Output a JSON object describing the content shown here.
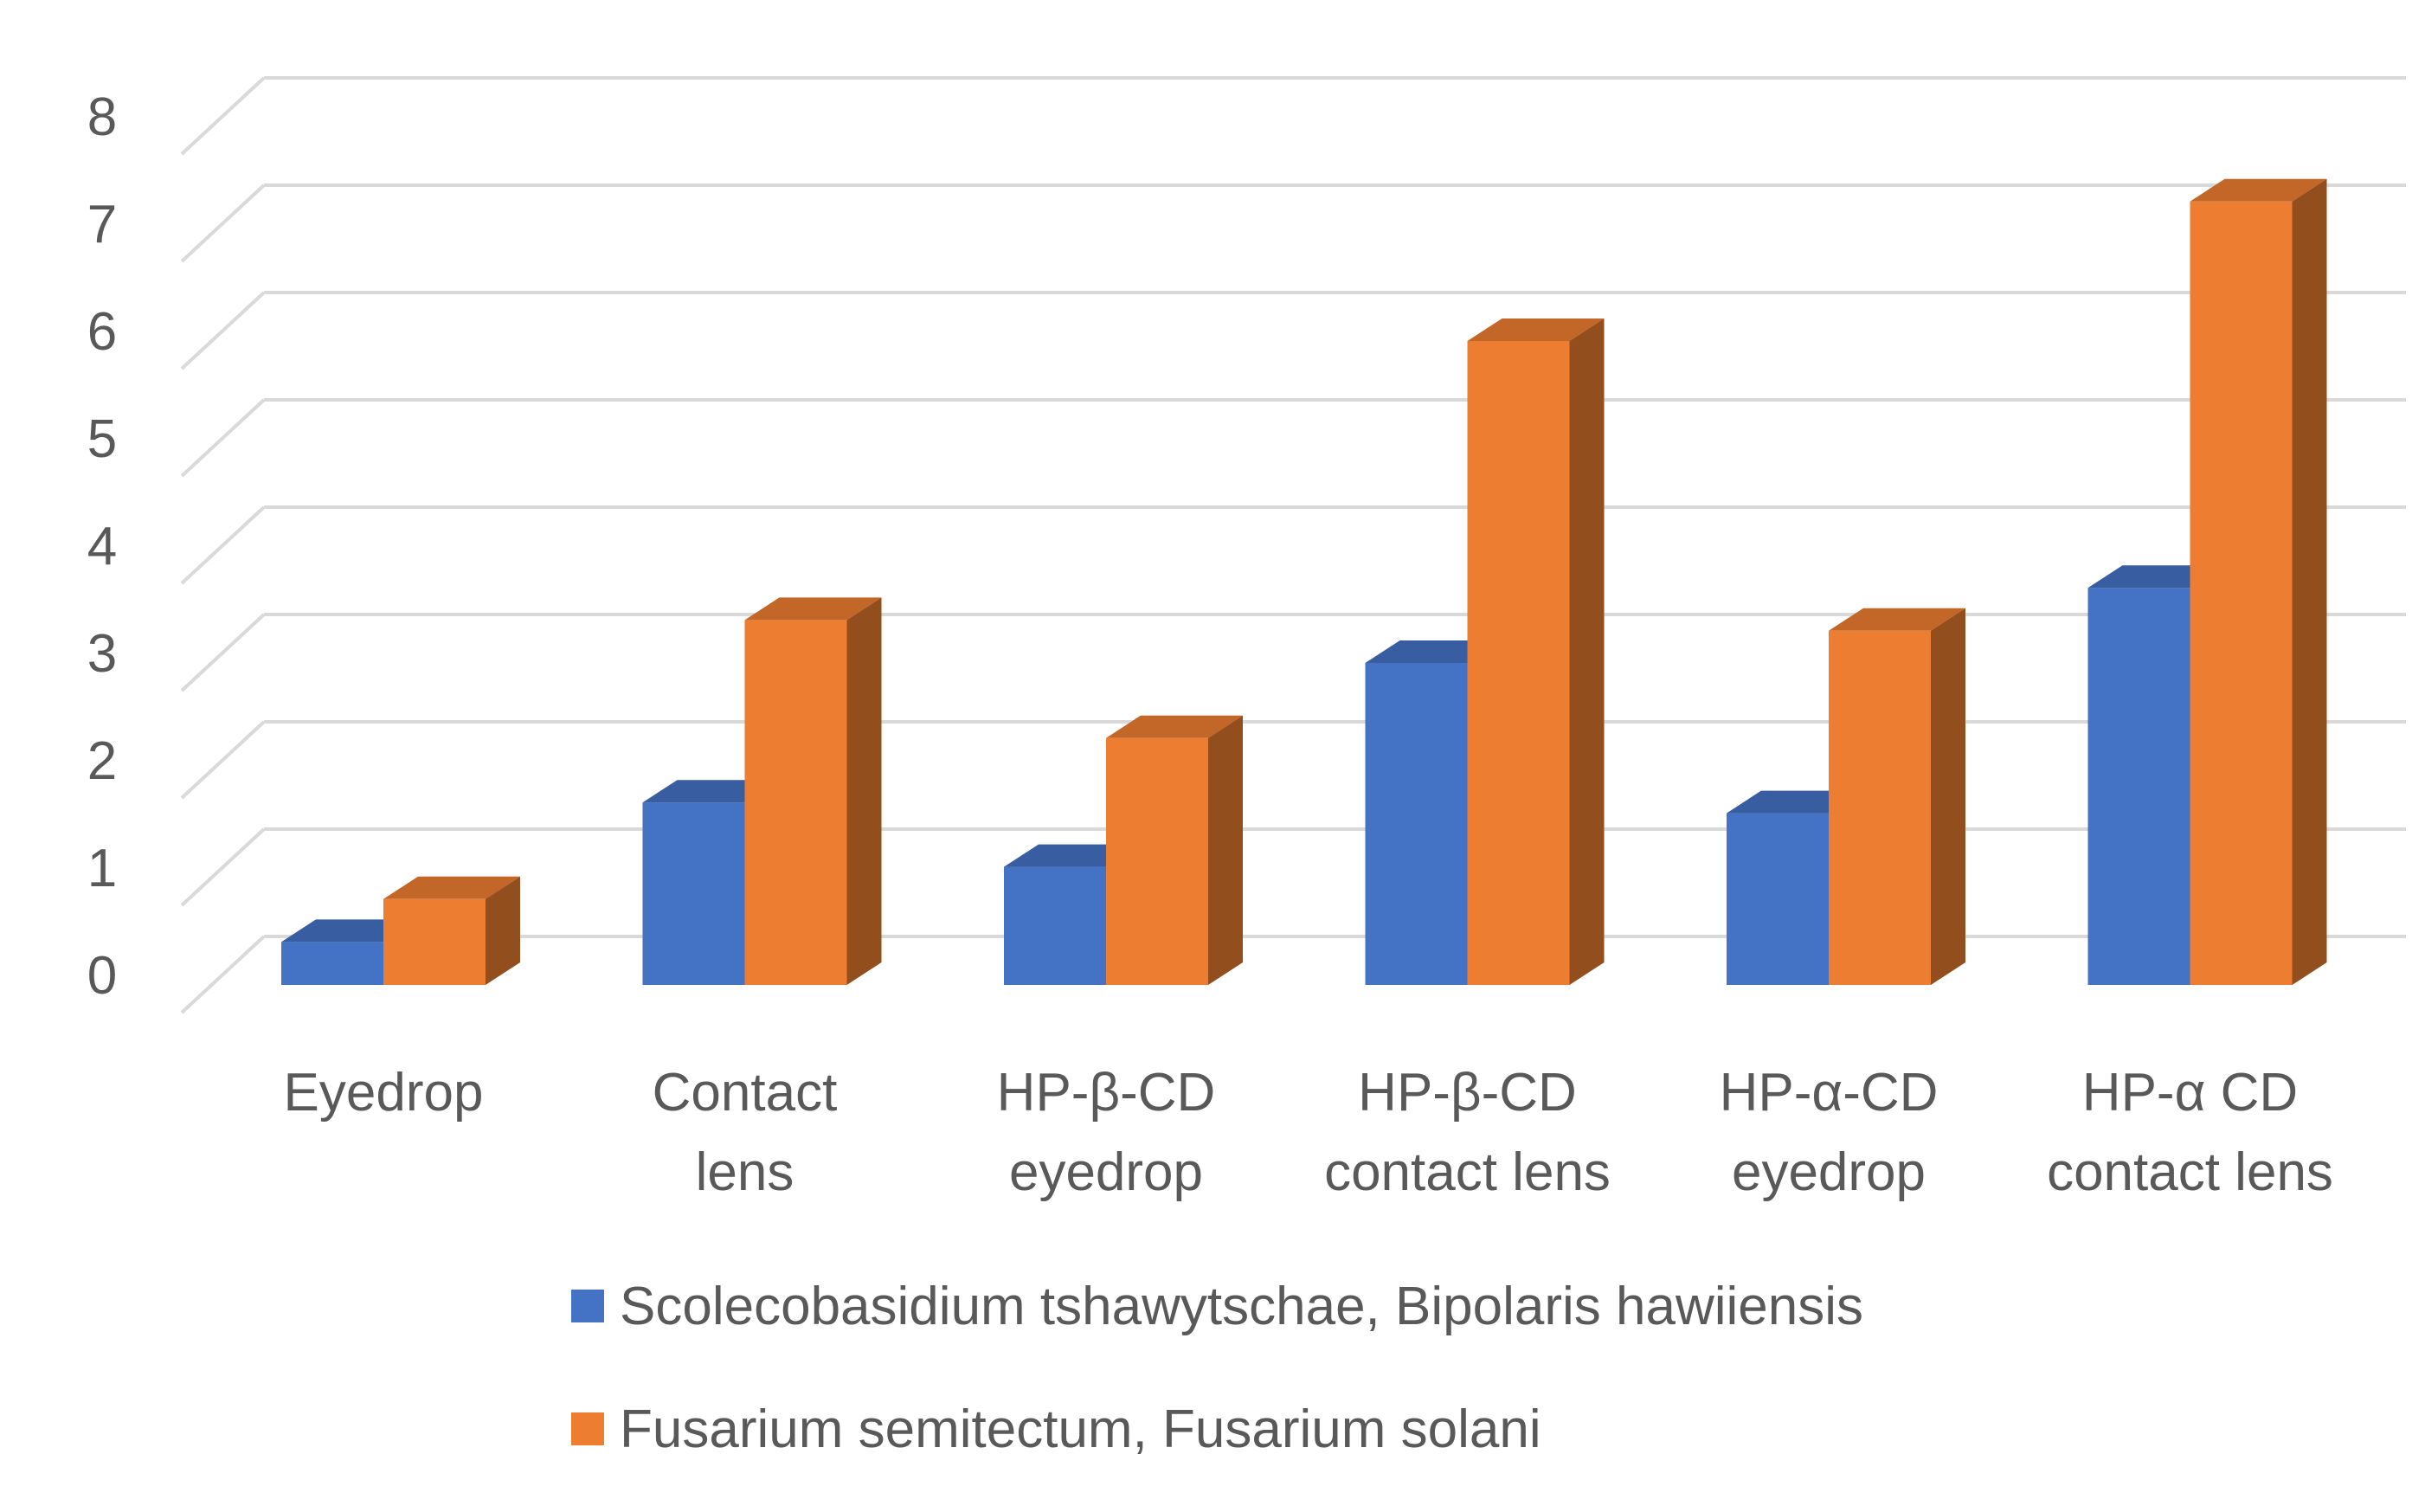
{
  "chart_data": {
    "type": "bar",
    "style": "3d-clustered-column",
    "title": "",
    "xlabel": "",
    "ylabel": "",
    "ylim": [
      0,
      8
    ],
    "yticks": [
      0,
      1,
      2,
      3,
      4,
      5,
      6,
      7,
      8
    ],
    "grid": true,
    "legend": "bottom",
    "categories": [
      [
        "Eyedrop"
      ],
      [
        "Contact",
        "lens"
      ],
      [
        "HP-β-CD",
        "eyedrop"
      ],
      [
        "HP-β-CD",
        "contact lens"
      ],
      [
        "HP-α-CD",
        "eyedrop"
      ],
      [
        "HP-α CD",
        "contact lens"
      ]
    ],
    "series": [
      {
        "name": "Scolecobasidium tshawytschae, Bipolaris hawiiensis",
        "color": "#4472C4",
        "values": [
          0.4,
          1.7,
          1.1,
          3.0,
          1.6,
          3.7
        ]
      },
      {
        "name": "Fusarium semitectum, Fusarium solani",
        "color": "#ED7D31",
        "values": [
          0.8,
          3.4,
          2.3,
          6.0,
          3.3,
          7.3
        ]
      }
    ]
  }
}
